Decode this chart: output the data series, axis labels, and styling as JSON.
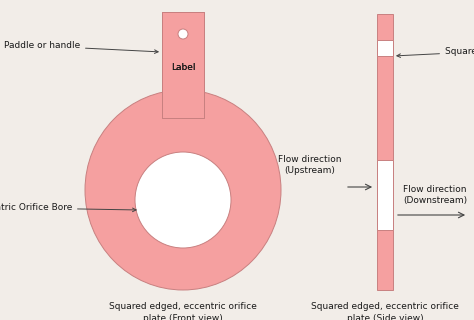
{
  "pink_color": "#F5A0A0",
  "white_color": "#FFFFFF",
  "outline_color": "#C88080",
  "bg_color": "#F2EDE8",
  "text_color": "#1a1a1a",
  "arrow_color": "#444444",
  "title1": "Squared edged, eccentric orifice\nplate (Front view)",
  "title2": "Squared edged, eccentric orifice\nplate (Side view)",
  "label_handle": "Paddle or handle",
  "label_label": "Label",
  "label_bore": "Eccentric Orifice Bore",
  "label_upstream": "Flow direction\n(Upstream)",
  "label_downstream": "Flow direction\n(Downstream)",
  "label_square_edge": "Square edge",
  "figsize": [
    4.74,
    3.2
  ],
  "dpi": 100
}
